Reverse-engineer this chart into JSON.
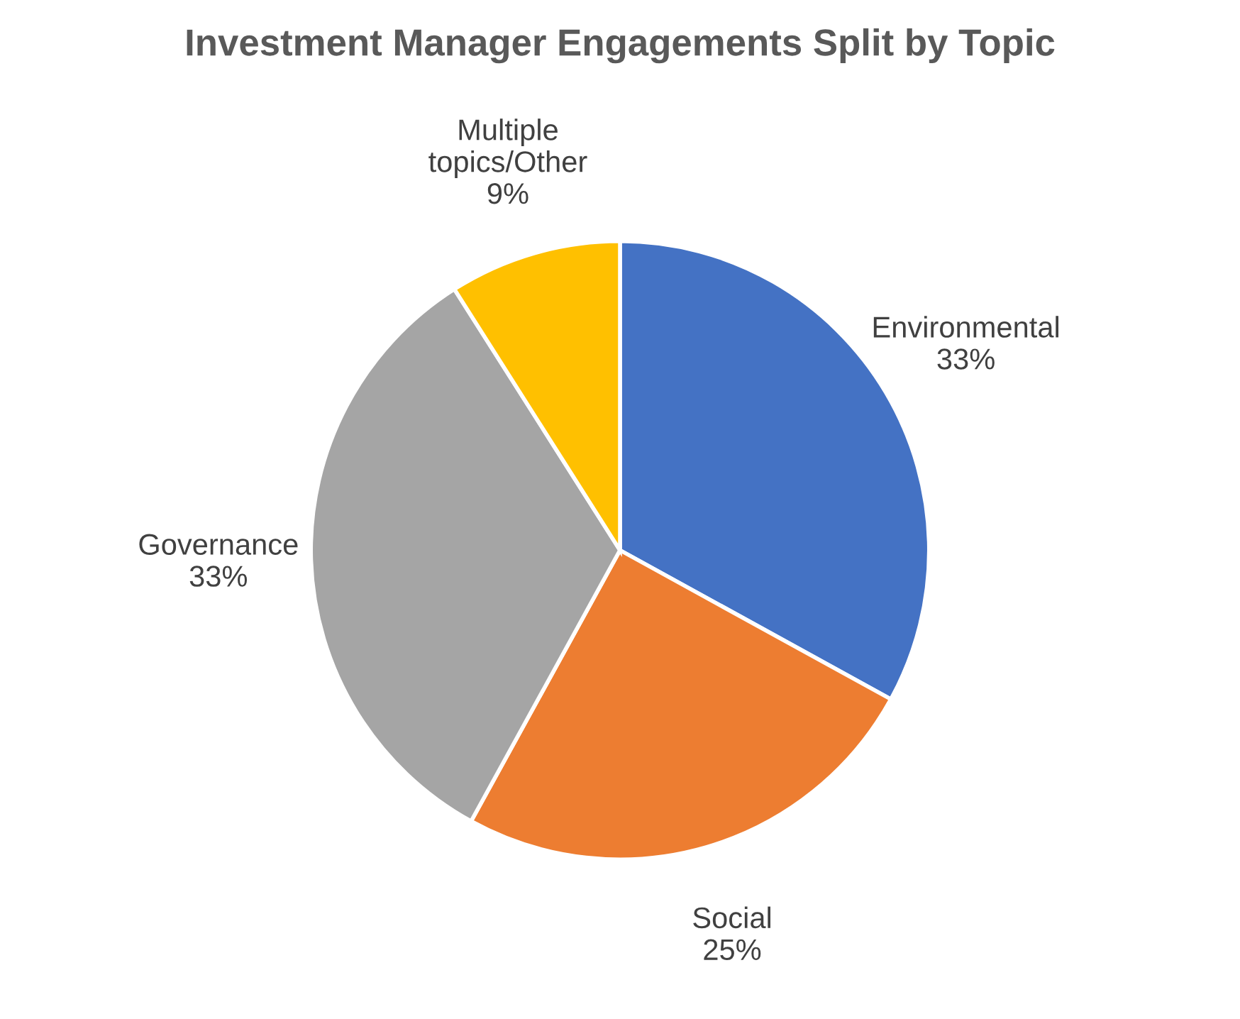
{
  "chart_data": {
    "type": "pie",
    "title": "Investment Manager Engagements Split by Topic",
    "categories": [
      "Environmental",
      "Social",
      "Governance",
      "Multiple topics/Other"
    ],
    "values": [
      33,
      25,
      33,
      9
    ],
    "colors": [
      "#4472c4",
      "#ed7d31",
      "#a5a5a5",
      "#ffc000"
    ],
    "value_labels": [
      "33%",
      "25%",
      "33%",
      "9%"
    ]
  }
}
